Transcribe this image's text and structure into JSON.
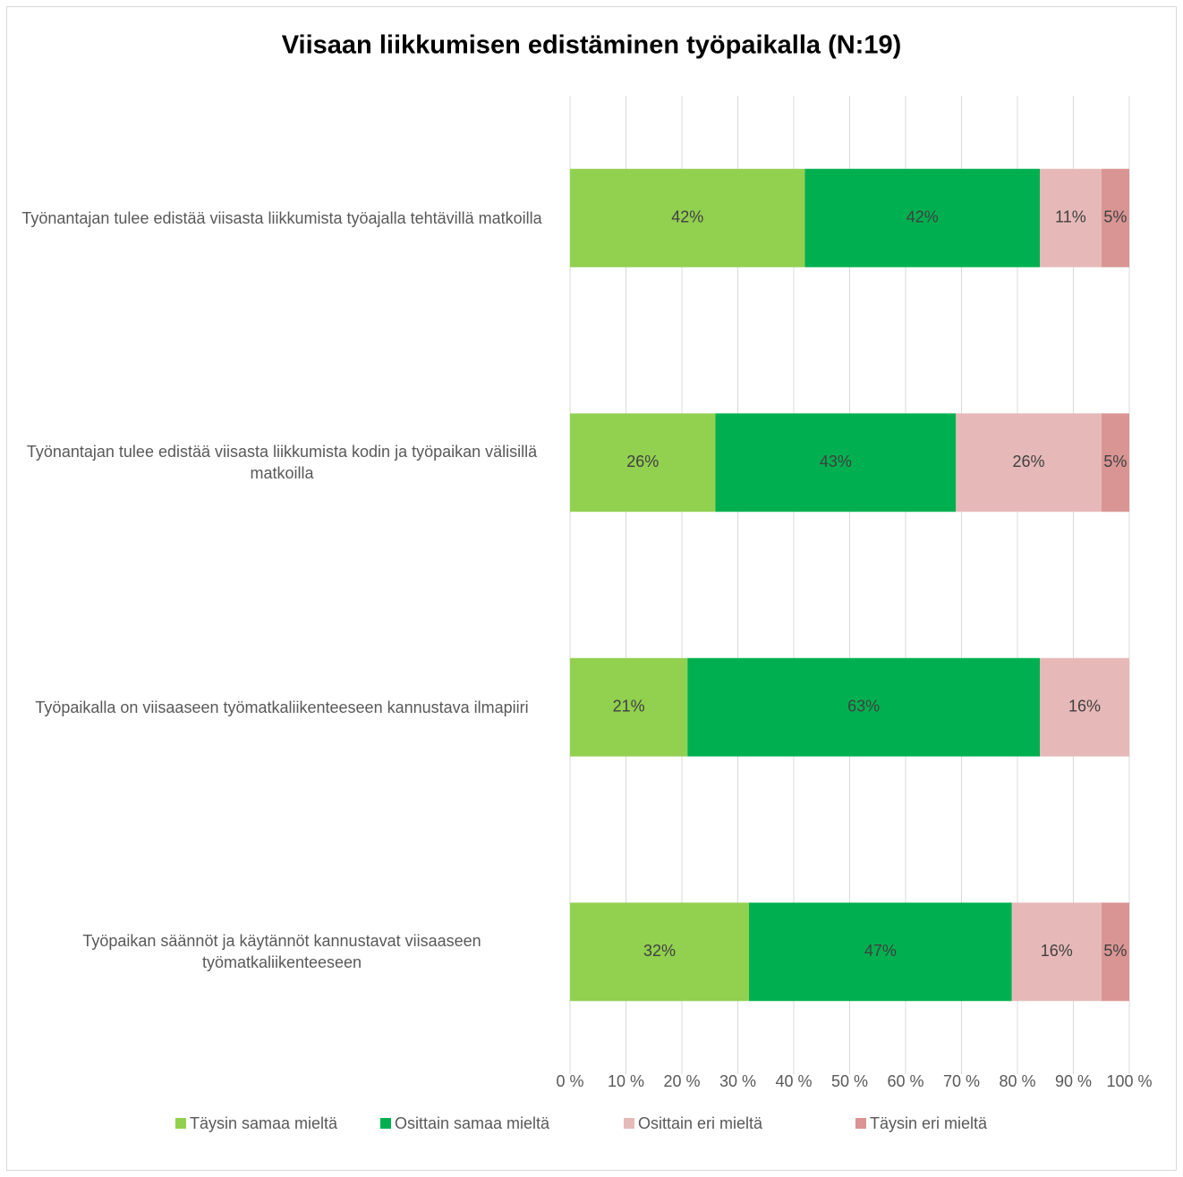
{
  "chart_data": {
    "type": "stacked_barh",
    "title": "Viisaan liikkumisen edistäminen työpaikalla (N:19)",
    "categories": [
      "Työnantajan tulee edistää viisasta liikkumista työajalla tehtävillä matkoilla",
      "Työnantajan tulee edistää viisasta liikkumista kodin ja työpaikan välisillä matkoilla",
      "Työpaikalla on viisaaseen työmatkaliikenteeseen kannustava ilmapiiri",
      "Työpaikan säännöt ja käytännöt kannustavat viisaaseen työmatkaliikenteeseen"
    ],
    "series": [
      {
        "name": "Täysin samaa mieltä",
        "color": "#92d050",
        "values": [
          42,
          26,
          21,
          32
        ],
        "value_labels": [
          "42%",
          "26%",
          "21%",
          "32%"
        ]
      },
      {
        "name": "Osittain samaa mieltä",
        "color": "#00b050",
        "values": [
          42,
          43,
          63,
          47
        ],
        "value_labels": [
          "42%",
          "43%",
          "63%",
          "47%"
        ]
      },
      {
        "name": "Osittain eri mieltä",
        "color": "#e6b9b8",
        "values": [
          11,
          26,
          16,
          16
        ],
        "value_labels": [
          "11%",
          "26%",
          "16%",
          "16%"
        ]
      },
      {
        "name": "Täysin eri mieltä",
        "color": "#d99594",
        "values": [
          5,
          5,
          null,
          5
        ],
        "value_labels": [
          "5%",
          "5%",
          null,
          "5%"
        ]
      }
    ],
    "xlim": [
      0,
      100
    ],
    "xticks": [
      {
        "value": 0,
        "label": "0 %"
      },
      {
        "value": 10,
        "label": "10 %"
      },
      {
        "value": 20,
        "label": "20 %"
      },
      {
        "value": 30,
        "label": "30 %"
      },
      {
        "value": 40,
        "label": "40 %"
      },
      {
        "value": 50,
        "label": "50 %"
      },
      {
        "value": 60,
        "label": "60 %"
      },
      {
        "value": 70,
        "label": "70 %"
      },
      {
        "value": 80,
        "label": "80 %"
      },
      {
        "value": 90,
        "label": "90 %"
      },
      {
        "value": 100,
        "label": "100 %"
      }
    ],
    "grid": true,
    "legend": "bottom"
  }
}
